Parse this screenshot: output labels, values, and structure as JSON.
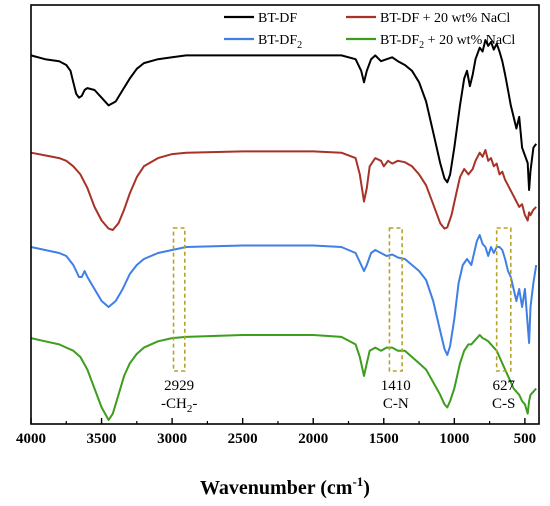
{
  "chart_data": {
    "type": "line",
    "title": "",
    "xlabel": "Wavenumber (cm",
    "xlabel_sup": "-1",
    "xlabel_close": ")",
    "ylabel": "",
    "xlim": [
      4000,
      400
    ],
    "x_reversed": true,
    "y_ticks_shown": false,
    "grid": false,
    "legend_position": "top-right",
    "x_ticks": [
      "4000",
      "3500",
      "3000",
      "2500",
      "2000",
      "1500",
      "1000",
      "500"
    ],
    "series": [
      {
        "name": "BT-DF",
        "name_parts": [
          "BT-DF",
          "",
          ""
        ],
        "color": "#000000",
        "points": [
          [
            4000,
            0.12
          ],
          [
            3900,
            0.14
          ],
          [
            3800,
            0.15
          ],
          [
            3750,
            0.17
          ],
          [
            3720,
            0.2
          ],
          [
            3700,
            0.26
          ],
          [
            3680,
            0.32
          ],
          [
            3660,
            0.34
          ],
          [
            3640,
            0.33
          ],
          [
            3620,
            0.3
          ],
          [
            3600,
            0.29
          ],
          [
            3550,
            0.3
          ],
          [
            3500,
            0.34
          ],
          [
            3450,
            0.38
          ],
          [
            3400,
            0.36
          ],
          [
            3350,
            0.3
          ],
          [
            3300,
            0.24
          ],
          [
            3250,
            0.19
          ],
          [
            3200,
            0.16
          ],
          [
            3100,
            0.14
          ],
          [
            3000,
            0.13
          ],
          [
            2900,
            0.12
          ],
          [
            2500,
            0.12
          ],
          [
            2000,
            0.12
          ],
          [
            1800,
            0.12
          ],
          [
            1700,
            0.14
          ],
          [
            1660,
            0.2
          ],
          [
            1640,
            0.26
          ],
          [
            1620,
            0.2
          ],
          [
            1590,
            0.14
          ],
          [
            1560,
            0.12
          ],
          [
            1520,
            0.15
          ],
          [
            1480,
            0.14
          ],
          [
            1440,
            0.13
          ],
          [
            1400,
            0.15
          ],
          [
            1350,
            0.17
          ],
          [
            1300,
            0.2
          ],
          [
            1250,
            0.26
          ],
          [
            1200,
            0.36
          ],
          [
            1150,
            0.52
          ],
          [
            1100,
            0.68
          ],
          [
            1070,
            0.76
          ],
          [
            1050,
            0.78
          ],
          [
            1030,
            0.74
          ],
          [
            1000,
            0.6
          ],
          [
            960,
            0.38
          ],
          [
            930,
            0.24
          ],
          [
            910,
            0.2
          ],
          [
            890,
            0.28
          ],
          [
            870,
            0.22
          ],
          [
            850,
            0.14
          ],
          [
            820,
            0.08
          ],
          [
            800,
            0.1
          ],
          [
            780,
            0.04
          ],
          [
            760,
            0.07
          ],
          [
            740,
            0.05
          ],
          [
            720,
            0.09
          ],
          [
            700,
            0.06
          ],
          [
            680,
            0.1
          ],
          [
            660,
            0.15
          ],
          [
            640,
            0.22
          ],
          [
            620,
            0.3
          ],
          [
            600,
            0.38
          ],
          [
            580,
            0.44
          ],
          [
            560,
            0.5
          ],
          [
            540,
            0.44
          ],
          [
            520,
            0.6
          ],
          [
            500,
            0.64
          ],
          [
            480,
            0.68
          ],
          [
            470,
            0.82
          ],
          [
            460,
            0.72
          ],
          [
            440,
            0.6
          ],
          [
            420,
            0.58
          ]
        ]
      },
      {
        "name": "BT-DF + 20 wt% NaCl",
        "name_parts": [
          "BT-DF + 20 wt% NaCl",
          "",
          ""
        ],
        "color": "#a83226",
        "points": [
          [
            4000,
            0.4
          ],
          [
            3900,
            0.42
          ],
          [
            3800,
            0.44
          ],
          [
            3750,
            0.46
          ],
          [
            3700,
            0.5
          ],
          [
            3650,
            0.56
          ],
          [
            3600,
            0.66
          ],
          [
            3550,
            0.8
          ],
          [
            3500,
            0.9
          ],
          [
            3450,
            0.96
          ],
          [
            3420,
            0.97
          ],
          [
            3380,
            0.92
          ],
          [
            3340,
            0.82
          ],
          [
            3300,
            0.7
          ],
          [
            3250,
            0.58
          ],
          [
            3200,
            0.5
          ],
          [
            3100,
            0.44
          ],
          [
            3000,
            0.41
          ],
          [
            2900,
            0.4
          ],
          [
            2500,
            0.39
          ],
          [
            2000,
            0.39
          ],
          [
            1800,
            0.4
          ],
          [
            1700,
            0.44
          ],
          [
            1670,
            0.56
          ],
          [
            1640,
            0.76
          ],
          [
            1620,
            0.66
          ],
          [
            1600,
            0.5
          ],
          [
            1560,
            0.44
          ],
          [
            1520,
            0.46
          ],
          [
            1500,
            0.5
          ],
          [
            1470,
            0.46
          ],
          [
            1440,
            0.48
          ],
          [
            1400,
            0.46
          ],
          [
            1350,
            0.47
          ],
          [
            1300,
            0.5
          ],
          [
            1250,
            0.56
          ],
          [
            1200,
            0.64
          ],
          [
            1150,
            0.78
          ],
          [
            1100,
            0.92
          ],
          [
            1070,
            0.96
          ],
          [
            1050,
            0.95
          ],
          [
            1020,
            0.86
          ],
          [
            990,
            0.72
          ],
          [
            960,
            0.58
          ],
          [
            930,
            0.52
          ],
          [
            900,
            0.56
          ],
          [
            870,
            0.52
          ],
          [
            850,
            0.46
          ],
          [
            820,
            0.4
          ],
          [
            800,
            0.43
          ],
          [
            780,
            0.38
          ],
          [
            760,
            0.46
          ],
          [
            740,
            0.44
          ],
          [
            720,
            0.5
          ],
          [
            700,
            0.48
          ],
          [
            680,
            0.56
          ],
          [
            660,
            0.54
          ],
          [
            640,
            0.6
          ],
          [
            620,
            0.64
          ],
          [
            600,
            0.68
          ],
          [
            580,
            0.72
          ],
          [
            560,
            0.76
          ],
          [
            540,
            0.8
          ],
          [
            520,
            0.78
          ],
          [
            500,
            0.86
          ],
          [
            480,
            0.9
          ],
          [
            470,
            0.84
          ],
          [
            460,
            0.86
          ],
          [
            440,
            0.82
          ],
          [
            420,
            0.8
          ]
        ]
      },
      {
        "name": "BT-DF2",
        "name_parts": [
          "BT-DF",
          "2",
          ""
        ],
        "color": "#3f7fe6",
        "points": [
          [
            4000,
            0.6
          ],
          [
            3900,
            0.61
          ],
          [
            3800,
            0.62
          ],
          [
            3750,
            0.63
          ],
          [
            3700,
            0.66
          ],
          [
            3680,
            0.68
          ],
          [
            3660,
            0.7
          ],
          [
            3640,
            0.7
          ],
          [
            3620,
            0.68
          ],
          [
            3600,
            0.7
          ],
          [
            3550,
            0.74
          ],
          [
            3500,
            0.78
          ],
          [
            3450,
            0.8
          ],
          [
            3400,
            0.78
          ],
          [
            3350,
            0.74
          ],
          [
            3300,
            0.69
          ],
          [
            3250,
            0.66
          ],
          [
            3200,
            0.64
          ],
          [
            3100,
            0.62
          ],
          [
            3000,
            0.61
          ],
          [
            2900,
            0.6
          ],
          [
            2500,
            0.595
          ],
          [
            2000,
            0.595
          ],
          [
            1800,
            0.6
          ],
          [
            1700,
            0.62
          ],
          [
            1660,
            0.66
          ],
          [
            1640,
            0.68
          ],
          [
            1620,
            0.66
          ],
          [
            1590,
            0.62
          ],
          [
            1560,
            0.61
          ],
          [
            1520,
            0.62
          ],
          [
            1480,
            0.63
          ],
          [
            1440,
            0.625
          ],
          [
            1400,
            0.635
          ],
          [
            1350,
            0.64
          ],
          [
            1300,
            0.66
          ],
          [
            1250,
            0.68
          ],
          [
            1200,
            0.71
          ],
          [
            1150,
            0.78
          ],
          [
            1100,
            0.88
          ],
          [
            1070,
            0.94
          ],
          [
            1050,
            0.96
          ],
          [
            1030,
            0.93
          ],
          [
            1000,
            0.84
          ],
          [
            970,
            0.72
          ],
          [
            940,
            0.66
          ],
          [
            910,
            0.64
          ],
          [
            880,
            0.66
          ],
          [
            860,
            0.62
          ],
          [
            840,
            0.58
          ],
          [
            820,
            0.56
          ],
          [
            800,
            0.59
          ],
          [
            780,
            0.6
          ],
          [
            760,
            0.63
          ],
          [
            740,
            0.6
          ],
          [
            720,
            0.62
          ],
          [
            700,
            0.6
          ],
          [
            680,
            0.6
          ],
          [
            660,
            0.61
          ],
          [
            640,
            0.64
          ],
          [
            620,
            0.68
          ],
          [
            600,
            0.7
          ],
          [
            580,
            0.74
          ],
          [
            560,
            0.78
          ],
          [
            540,
            0.74
          ],
          [
            520,
            0.8
          ],
          [
            500,
            0.74
          ],
          [
            480,
            0.86
          ],
          [
            470,
            0.92
          ],
          [
            460,
            0.8
          ],
          [
            440,
            0.72
          ],
          [
            420,
            0.66
          ]
        ]
      },
      {
        "name": "BT-DF2 + 20 wt% NaCl",
        "name_parts": [
          "BT-DF",
          "2",
          " + 20 wt% NaCl"
        ],
        "color": "#3c9e1c",
        "points": [
          [
            4000,
            0.87
          ],
          [
            3900,
            0.875
          ],
          [
            3800,
            0.88
          ],
          [
            3750,
            0.885
          ],
          [
            3700,
            0.89
          ],
          [
            3650,
            0.9
          ],
          [
            3600,
            0.92
          ],
          [
            3550,
            0.95
          ],
          [
            3500,
            0.98
          ],
          [
            3450,
            1.0
          ],
          [
            3420,
            0.99
          ],
          [
            3380,
            0.96
          ],
          [
            3340,
            0.93
          ],
          [
            3300,
            0.91
          ],
          [
            3250,
            0.895
          ],
          [
            3200,
            0.885
          ],
          [
            3100,
            0.875
          ],
          [
            3000,
            0.87
          ],
          [
            2900,
            0.868
          ],
          [
            2500,
            0.865
          ],
          [
            2000,
            0.865
          ],
          [
            1800,
            0.868
          ],
          [
            1700,
            0.88
          ],
          [
            1670,
            0.9
          ],
          [
            1640,
            0.93
          ],
          [
            1620,
            0.91
          ],
          [
            1600,
            0.89
          ],
          [
            1560,
            0.885
          ],
          [
            1520,
            0.89
          ],
          [
            1480,
            0.885
          ],
          [
            1440,
            0.885
          ],
          [
            1400,
            0.89
          ],
          [
            1350,
            0.89
          ],
          [
            1300,
            0.9
          ],
          [
            1250,
            0.91
          ],
          [
            1200,
            0.92
          ],
          [
            1150,
            0.94
          ],
          [
            1100,
            0.96
          ],
          [
            1070,
            0.975
          ],
          [
            1050,
            0.98
          ],
          [
            1030,
            0.97
          ],
          [
            1000,
            0.95
          ],
          [
            960,
            0.91
          ],
          [
            930,
            0.89
          ],
          [
            900,
            0.88
          ],
          [
            880,
            0.88
          ],
          [
            860,
            0.875
          ],
          [
            840,
            0.87
          ],
          [
            820,
            0.865
          ],
          [
            800,
            0.87
          ],
          [
            780,
            0.872
          ],
          [
            760,
            0.875
          ],
          [
            740,
            0.88
          ],
          [
            720,
            0.885
          ],
          [
            700,
            0.89
          ],
          [
            680,
            0.9
          ],
          [
            660,
            0.91
          ],
          [
            640,
            0.92
          ],
          [
            620,
            0.93
          ],
          [
            600,
            0.94
          ],
          [
            580,
            0.95
          ],
          [
            560,
            0.955
          ],
          [
            540,
            0.96
          ],
          [
            520,
            0.97
          ],
          [
            500,
            0.975
          ],
          [
            480,
            0.99
          ],
          [
            470,
            0.97
          ],
          [
            460,
            0.96
          ],
          [
            440,
            0.955
          ],
          [
            420,
            0.95
          ]
        ]
      }
    ],
    "annotations": [
      {
        "value": "2929",
        "label": "-CH",
        "label_sub": "2",
        "label_tail": "-",
        "x_from": 2990,
        "x_to": 2910
      },
      {
        "value": "1410",
        "label": "C-N",
        "label_sub": "",
        "label_tail": "",
        "x_from": 1460,
        "x_to": 1370
      },
      {
        "value": "627",
        "label": "C-S",
        "label_sub": "",
        "label_tail": "",
        "x_from": 700,
        "x_to": 600
      }
    ]
  }
}
